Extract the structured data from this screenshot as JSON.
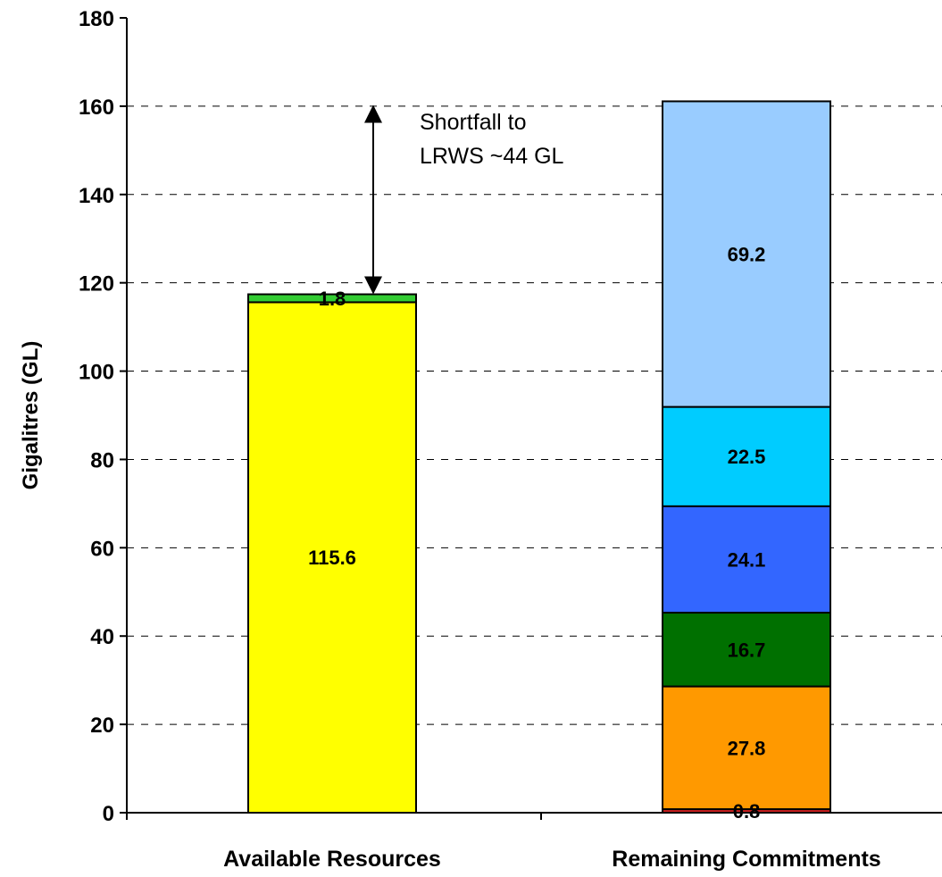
{
  "chart_data": {
    "type": "bar",
    "stacked": true,
    "title": "",
    "xlabel": "",
    "ylabel": "Gigalitres (GL)",
    "ylim": [
      0,
      180
    ],
    "yticks": [
      0,
      20,
      40,
      60,
      80,
      100,
      120,
      140,
      160,
      180
    ],
    "ytick_labels": [
      "0",
      "20",
      "40",
      "60",
      "80",
      "100",
      "120",
      "140",
      "160",
      "180"
    ],
    "grid": "horizontal dashed",
    "legend": "none",
    "categories": [
      "Available Resources",
      "Remaining Commitments"
    ],
    "stacks": [
      {
        "category": "Available Resources",
        "segments": [
          {
            "value": 115.6,
            "label": "115.6",
            "color": "#ffff00"
          },
          {
            "value": 1.8,
            "label": "1.8",
            "color": "#33cc33"
          }
        ]
      },
      {
        "category": "Remaining Commitments",
        "segments": [
          {
            "value": 0.8,
            "label": "0.8",
            "color": "#cc1f1f"
          },
          {
            "value": 27.8,
            "label": "27.8",
            "color": "#ff9900"
          },
          {
            "value": 16.7,
            "label": "16.7",
            "color": "#007000"
          },
          {
            "value": 24.1,
            "label": "24.1",
            "color": "#3366ff"
          },
          {
            "value": 22.5,
            "label": "22.5",
            "color": "#00ccff"
          },
          {
            "value": 69.2,
            "label": "69.2",
            "color": "#99ccff"
          }
        ]
      }
    ],
    "annotation": {
      "lines": [
        "Shortfall to",
        "LRWS ~44 GL"
      ],
      "arrow_from": 117.4,
      "arrow_to": 161.1
    }
  }
}
